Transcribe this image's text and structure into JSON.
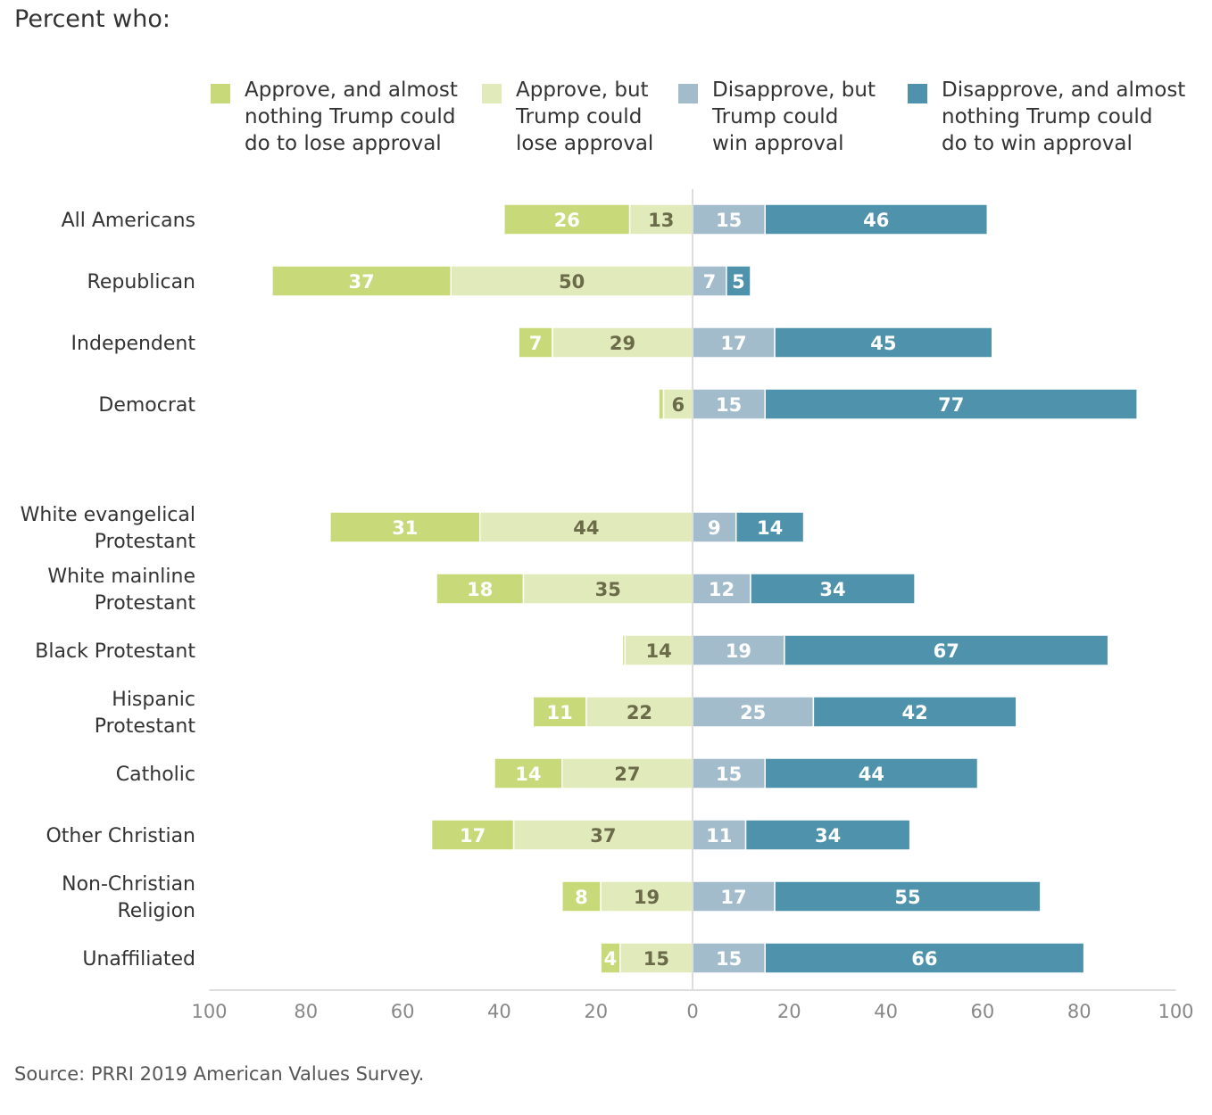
{
  "header": {
    "title": "Percent who:"
  },
  "source": "Source: PRRI 2019 American Values Survey.",
  "colors": {
    "approve_strong": "#c8d979",
    "approve_soft": "#e1eabb",
    "disapprove_soft": "#a3bccc",
    "disapprove_strong": "#4f92ac",
    "axis": "#dddddd",
    "label_light": "#ffffff",
    "label_dark": "#6b6b4a"
  },
  "chart_data": {
    "type": "bar",
    "orientation": "horizontal-diverging",
    "xlim": [
      -100,
      100
    ],
    "x_ticks": [
      -100,
      -80,
      -60,
      -40,
      -20,
      0,
      20,
      40,
      60,
      80,
      100
    ],
    "x_tick_labels": [
      "100",
      "80",
      "60",
      "40",
      "20",
      "0",
      "20",
      "40",
      "60",
      "80",
      "100"
    ],
    "series": [
      {
        "name": "Approve, and almost nothing Trump could do to lose approval",
        "lines": [
          "Approve, and almost",
          "nothing Trump could",
          "do to lose approval"
        ]
      },
      {
        "name": "Approve, but Trump could lose approval",
        "lines": [
          "Approve, but",
          "Trump could",
          "lose approval"
        ]
      },
      {
        "name": "Disapprove, but Trump could win approval",
        "lines": [
          "Disapprove, but",
          "Trump could",
          "win approval"
        ]
      },
      {
        "name": "Disapprove, and almost nothing Trump could do to win approval",
        "lines": [
          "Disapprove, and almost",
          "nothing Trump could",
          "do to win approval"
        ]
      }
    ],
    "categories": [
      {
        "label": [
          "All Americans"
        ],
        "values": [
          26,
          13,
          15,
          46
        ],
        "labels": [
          "26",
          "13",
          "15",
          "46"
        ]
      },
      {
        "label": [
          "Republican"
        ],
        "values": [
          37,
          50,
          7,
          5
        ],
        "labels": [
          "37",
          "50",
          "7",
          "5"
        ]
      },
      {
        "label": [
          "Independent"
        ],
        "values": [
          7,
          29,
          17,
          45
        ],
        "labels": [
          "7",
          "29",
          "17",
          "45"
        ]
      },
      {
        "label": [
          "Democrat"
        ],
        "values": [
          1,
          6,
          15,
          77
        ],
        "labels": [
          "",
          "6",
          "15",
          "77"
        ]
      },
      {
        "label": [
          "White evangelical",
          "Protestant"
        ],
        "values": [
          31,
          44,
          9,
          14
        ],
        "labels": [
          "31",
          "44",
          "9",
          "14"
        ]
      },
      {
        "label": [
          "White mainline",
          "Protestant"
        ],
        "values": [
          18,
          35,
          12,
          34
        ],
        "labels": [
          "18",
          "35",
          "12",
          "34"
        ]
      },
      {
        "label": [
          "Black Protestant"
        ],
        "values": [
          0.5,
          14,
          19,
          67
        ],
        "labels": [
          "",
          "14",
          "19",
          "67"
        ]
      },
      {
        "label": [
          "Hispanic",
          "Protestant"
        ],
        "values": [
          11,
          22,
          25,
          42
        ],
        "labels": [
          "11",
          "22",
          "25",
          "42"
        ]
      },
      {
        "label": [
          "Catholic"
        ],
        "values": [
          14,
          27,
          15,
          44
        ],
        "labels": [
          "14",
          "27",
          "15",
          "44"
        ]
      },
      {
        "label": [
          "Other Christian"
        ],
        "values": [
          17,
          37,
          11,
          34
        ],
        "labels": [
          "17",
          "37",
          "11",
          "34"
        ]
      },
      {
        "label": [
          "Non-Christian",
          "Religion"
        ],
        "values": [
          8,
          19,
          17,
          55
        ],
        "labels": [
          "8",
          "19",
          "17",
          "55"
        ]
      },
      {
        "label": [
          "Unaffiliated"
        ],
        "values": [
          4,
          15,
          15,
          66
        ],
        "labels": [
          "4",
          "15",
          "15",
          "66"
        ]
      }
    ]
  }
}
